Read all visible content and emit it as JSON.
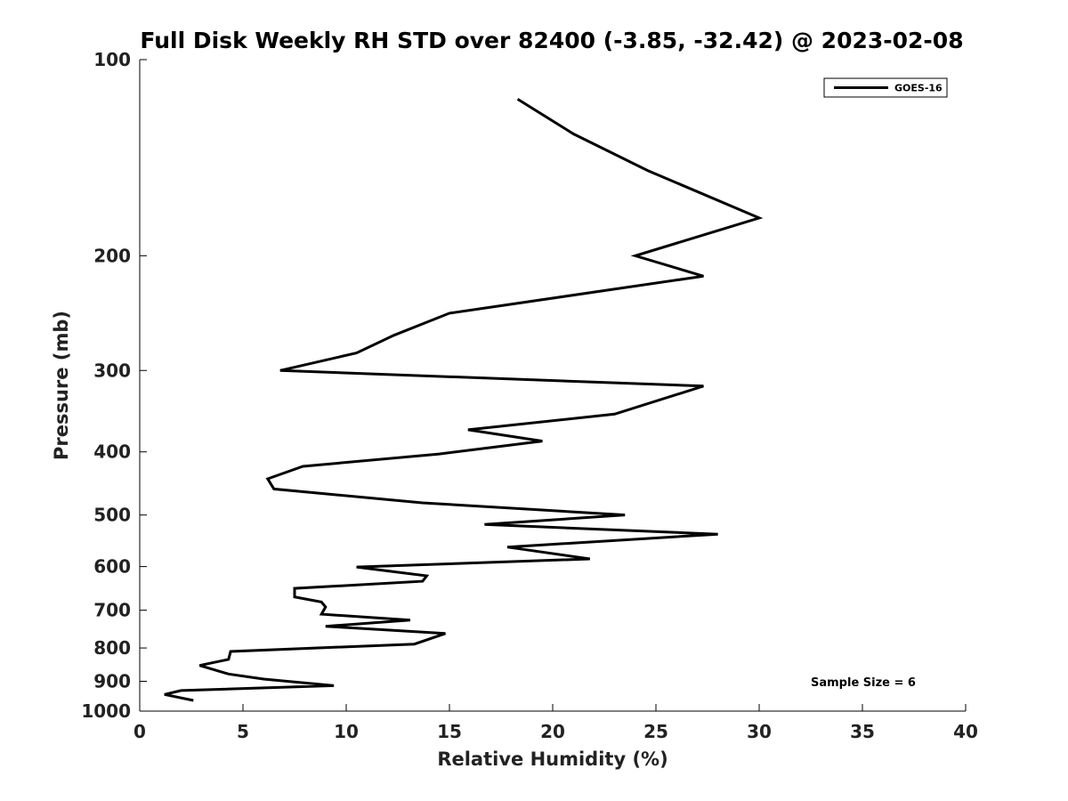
{
  "chart_data": {
    "type": "line",
    "title": "Full Disk Weekly RH STD over 82400 (-3.85, -32.42) @ 2023-02-08",
    "xlabel": "Relative Humidity (%)",
    "ylabel": "Pressure (mb)",
    "xlim": [
      0,
      40
    ],
    "ylim": [
      1000,
      100
    ],
    "yscale": "log",
    "grid": false,
    "legend_position": "top-right",
    "x_ticks": [
      "0",
      "5",
      "10",
      "15",
      "20",
      "25",
      "30",
      "35",
      "40"
    ],
    "y_ticks": [
      "100",
      "200",
      "300",
      "400",
      "500",
      "600",
      "700",
      "800",
      "900",
      "1000"
    ],
    "annotation": "Sample Size = 6",
    "series": [
      {
        "name": "GOES-16",
        "color": "#000000",
        "x": [
          18.3,
          21.0,
          24.6,
          30.0,
          24.0,
          27.3,
          15.0,
          12.3,
          10.5,
          6.8,
          27.3,
          23.0,
          15.9,
          19.5,
          14.5,
          7.9,
          6.2,
          6.5,
          13.7,
          23.5,
          16.7,
          28.0,
          17.8,
          21.8,
          10.5,
          13.9,
          13.7,
          7.5,
          7.5,
          8.8,
          9.0,
          8.8,
          13.1,
          9.0,
          14.8,
          13.3,
          4.4,
          4.3,
          2.9,
          4.3,
          6.0,
          9.4,
          2.0,
          1.2,
          2.6
        ],
        "y": [
          115,
          130,
          148,
          175,
          200,
          215,
          245,
          265,
          282,
          300,
          317,
          350,
          370,
          385,
          403,
          421,
          440,
          456,
          479,
          500,
          517,
          535,
          560,
          584,
          601,
          620,
          632,
          648,
          668,
          680,
          692,
          710,
          725,
          741,
          760,
          789,
          810,
          833,
          851,
          877,
          893,
          914,
          930,
          943,
          963
        ]
      }
    ]
  }
}
